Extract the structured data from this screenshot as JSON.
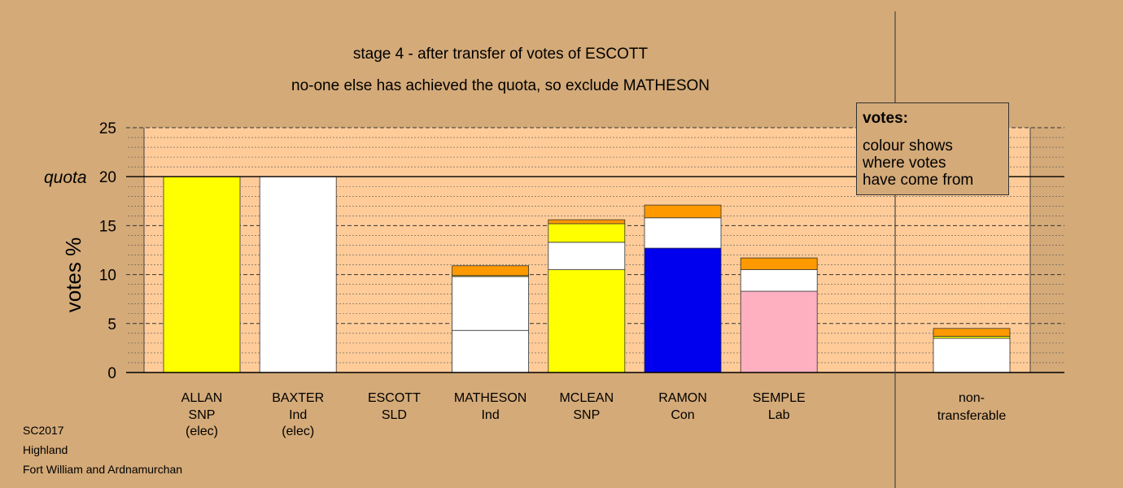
{
  "chart_data": {
    "type": "bar",
    "stacked": true,
    "title": "stage 4 - after transfer of votes of ESCOTT",
    "subtitle": "no-one else has achieved the quota, so exclude MATHESON",
    "ylabel": "votes %",
    "ylim": [
      0,
      25
    ],
    "yticks": [
      0,
      5,
      10,
      15,
      20,
      25
    ],
    "quota": 20,
    "quota_label": "quota",
    "grid": "dashed",
    "candidates": [
      {
        "name": "ALLAN",
        "party": "SNP",
        "status": "(elec)",
        "segments": [
          {
            "color": "#ffff00",
            "value": 20.0
          }
        ]
      },
      {
        "name": "BAXTER",
        "party": "Ind",
        "status": "(elec)",
        "segments": [
          {
            "color": "#ffffff",
            "value": 20.0
          }
        ]
      },
      {
        "name": "ESCOTT",
        "party": "SLD",
        "status": "",
        "segments": []
      },
      {
        "name": "MATHESON",
        "party": "Ind",
        "status": "",
        "segments": [
          {
            "color": "#ffffff",
            "value": 4.3
          },
          {
            "color": "#ffffff",
            "value": 5.5
          },
          {
            "color": "#ffff00",
            "value": 0.1
          },
          {
            "color": "#ff9900",
            "value": 1.0
          }
        ]
      },
      {
        "name": "MCLEAN",
        "party": "SNP",
        "status": "",
        "segments": [
          {
            "color": "#ffff00",
            "value": 10.5
          },
          {
            "color": "#ffffff",
            "value": 2.8
          },
          {
            "color": "#ffff00",
            "value": 1.9
          },
          {
            "color": "#ff9900",
            "value": 0.4
          }
        ]
      },
      {
        "name": "RAMON",
        "party": "Con",
        "status": "",
        "segments": [
          {
            "color": "#0000ee",
            "value": 12.7
          },
          {
            "color": "#ffffff",
            "value": 3.1
          },
          {
            "color": "#ff9900",
            "value": 1.3
          }
        ]
      },
      {
        "name": "SEMPLE",
        "party": "Lab",
        "status": "",
        "segments": [
          {
            "color": "#ffb0c0",
            "value": 8.3
          },
          {
            "color": "#ffffff",
            "value": 2.2
          },
          {
            "color": "#ff9900",
            "value": 1.2
          }
        ]
      }
    ],
    "non_transferable": {
      "label_line1": "non-",
      "label_line2": "transferable",
      "segments": [
        {
          "color": "#ffffff",
          "value": 3.5
        },
        {
          "color": "#ffff00",
          "value": 0.2
        },
        {
          "color": "#ff9900",
          "value": 0.8
        }
      ]
    }
  },
  "legend": {
    "title": "votes:",
    "lines": [
      "colour shows",
      "where votes",
      "have come from"
    ]
  },
  "captions": [
    "SC2017",
    "Highland",
    "Fort William and Ardnamurchan"
  ],
  "colors": {
    "background": "#d4aa78",
    "plot_area": "#ffcc99",
    "snp": "#ffff00",
    "con": "#0000ee",
    "lab": "#ffb0c0",
    "ind": "#ffffff",
    "transfer": "#ff9900"
  }
}
